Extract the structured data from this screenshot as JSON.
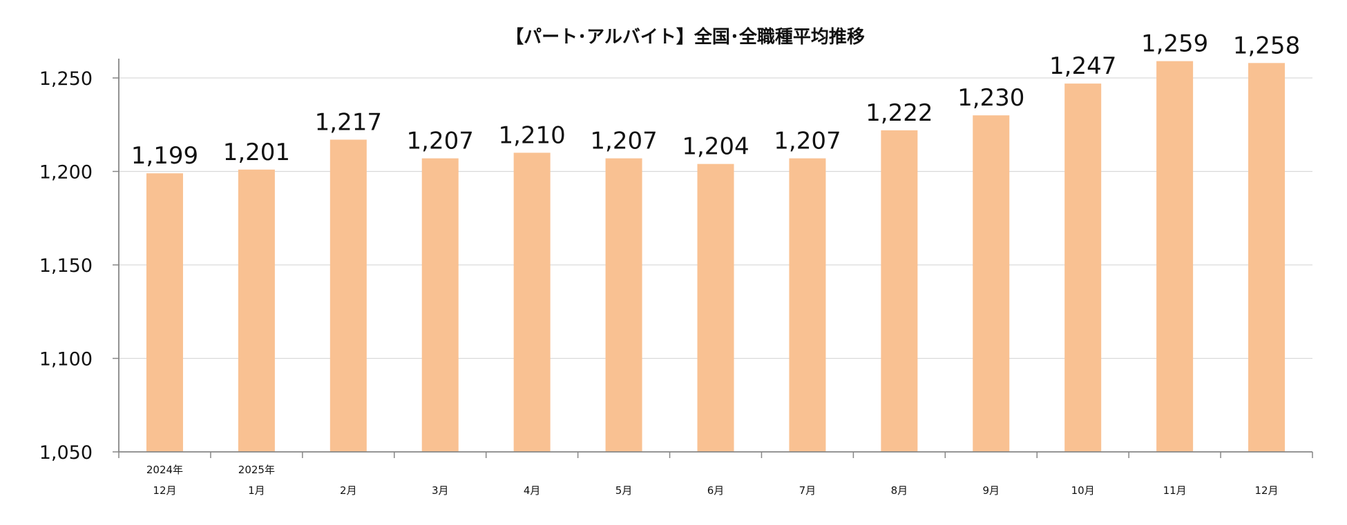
{
  "chart_data": {
    "type": "bar",
    "title": "【パート･アルバイト】全国･全職種平均推移",
    "categories": [
      [
        "2024年",
        "12月"
      ],
      [
        "2025年",
        "1月"
      ],
      [
        "2月"
      ],
      [
        "3月"
      ],
      [
        "4月"
      ],
      [
        "5月"
      ],
      [
        "6月"
      ],
      [
        "7月"
      ],
      [
        "8月"
      ],
      [
        "9月"
      ],
      [
        "10月"
      ],
      [
        "11月"
      ],
      [
        "12月"
      ]
    ],
    "values": [
      1199,
      1201,
      1217,
      1207,
      1210,
      1207,
      1204,
      1207,
      1222,
      1230,
      1247,
      1259,
      1258
    ],
    "data_labels": [
      "1,199",
      "1,201",
      "1,217",
      "1,207",
      "1,210",
      "1,207",
      "1,204",
      "1,207",
      "1,222",
      "1,230",
      "1,247",
      "1,259",
      "1,258"
    ],
    "ylim": [
      1050,
      1260
    ],
    "yticks": [
      1050,
      1100,
      1150,
      1200,
      1250
    ],
    "ytick_labels": [
      "1,050",
      "1,100",
      "1,150",
      "1,200",
      "1,250"
    ],
    "grid": true,
    "legend": "none",
    "bar_color": "#F9C192"
  }
}
